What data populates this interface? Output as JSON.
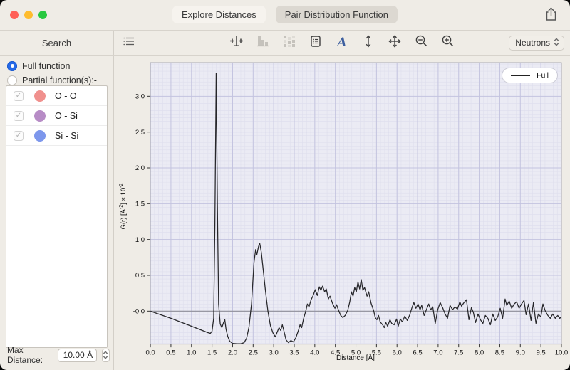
{
  "titlebar": {
    "tabs": [
      {
        "label": "Explore Distances",
        "selected": false
      },
      {
        "label": "Pair Distribution Function",
        "selected": true
      }
    ]
  },
  "sidebar": {
    "header": "Search",
    "radio_full_label": "Full function",
    "radio_partial_label": "Partial function(s):-",
    "pairs": [
      {
        "label": "O - O",
        "checked": true,
        "color": "#f0908d"
      },
      {
        "label": "O - Si",
        "checked": true,
        "color": "#b78cc6"
      },
      {
        "label": "Si - Si",
        "checked": true,
        "color": "#7d97ec"
      }
    ],
    "checkmark": "✓",
    "max_distance": {
      "label": "Max Distance:",
      "value": "10.00 Å"
    }
  },
  "toolbar": {
    "source_selector": "Neutrons",
    "icons": [
      "view-list",
      "adjust-range",
      "histogram",
      "scatter-grid",
      "data-table",
      "font",
      "scale-vertical",
      "pan",
      "zoom-out",
      "zoom-in"
    ],
    "disabled_icons": [
      "histogram",
      "scatter-grid"
    ]
  },
  "colors": {
    "accent_blue": "#2569e8",
    "traffic_close": "#ff5f57",
    "traffic_min": "#febc2e",
    "traffic_max": "#28c840",
    "plot_bg": "#ebebf4",
    "grid_minor": "#dedeed",
    "grid_major": "#c3c3df",
    "zero_line": "#90909a",
    "plot_border": "#a8a8b4",
    "curve": "#26262a"
  },
  "chart_data": {
    "type": "line",
    "xlabel": "Distance [Å]",
    "ylabel": {
      "pre": "G(r) [Å",
      "sup1": "-2",
      "mid": "] × 10",
      "sup2": "-2"
    },
    "xlim": [
      0,
      10
    ],
    "ylim": [
      -0.46,
      3.47
    ],
    "grid": {
      "x_minor": 0.1,
      "y_minor": 0.05,
      "x_major": 0.5,
      "y_major": 0.5
    },
    "legend_position": "top-right",
    "xtick_labels": [
      "0.0",
      "0.5",
      "1.0",
      "1.5",
      "2.0",
      "2.5",
      "3.0",
      "3.5",
      "4.0",
      "4.5",
      "5.0",
      "5.5",
      "6.0",
      "6.5",
      "7.0",
      "7.5",
      "8.0",
      "8.5",
      "9.0",
      "9.5",
      "10.0"
    ],
    "ytick_labels": [
      "3.0",
      "2.5",
      "2.0",
      "1.5",
      "1.0",
      "0.5",
      "-0.0"
    ],
    "ytick_values": [
      3.0,
      2.5,
      2.0,
      1.5,
      1.0,
      0.5,
      0.0
    ],
    "series": [
      {
        "name": "Full",
        "points": [
          [
            0.0,
            0.0
          ],
          [
            0.5,
            -0.1
          ],
          [
            1.0,
            -0.21
          ],
          [
            1.4,
            -0.3
          ],
          [
            1.46,
            -0.31
          ],
          [
            1.5,
            -0.28
          ],
          [
            1.54,
            -0.1
          ],
          [
            1.57,
            1.2
          ],
          [
            1.6,
            3.32
          ],
          [
            1.63,
            1.5
          ],
          [
            1.66,
            0.1
          ],
          [
            1.7,
            -0.18
          ],
          [
            1.74,
            -0.23
          ],
          [
            1.78,
            -0.16
          ],
          [
            1.81,
            -0.12
          ],
          [
            1.84,
            -0.25
          ],
          [
            1.88,
            -0.35
          ],
          [
            1.93,
            -0.42
          ],
          [
            2.0,
            -0.45
          ],
          [
            2.1,
            -0.455
          ],
          [
            2.2,
            -0.455
          ],
          [
            2.28,
            -0.44
          ],
          [
            2.34,
            -0.38
          ],
          [
            2.4,
            -0.22
          ],
          [
            2.46,
            0.1
          ],
          [
            2.52,
            0.68
          ],
          [
            2.56,
            0.86
          ],
          [
            2.59,
            0.79
          ],
          [
            2.63,
            0.9
          ],
          [
            2.66,
            0.95
          ],
          [
            2.7,
            0.82
          ],
          [
            2.75,
            0.55
          ],
          [
            2.8,
            0.28
          ],
          [
            2.86,
            0.0
          ],
          [
            2.92,
            -0.2
          ],
          [
            2.98,
            -0.3
          ],
          [
            3.04,
            -0.36
          ],
          [
            3.08,
            -0.3
          ],
          [
            3.13,
            -0.23
          ],
          [
            3.17,
            -0.27
          ],
          [
            3.21,
            -0.19
          ],
          [
            3.25,
            -0.28
          ],
          [
            3.3,
            -0.4
          ],
          [
            3.36,
            -0.44
          ],
          [
            3.42,
            -0.41
          ],
          [
            3.48,
            -0.43
          ],
          [
            3.54,
            -0.37
          ],
          [
            3.6,
            -0.27
          ],
          [
            3.64,
            -0.19
          ],
          [
            3.68,
            -0.23
          ],
          [
            3.73,
            -0.1
          ],
          [
            3.78,
            0.0
          ],
          [
            3.82,
            0.1
          ],
          [
            3.86,
            0.06
          ],
          [
            3.91,
            0.16
          ],
          [
            3.96,
            0.22
          ],
          [
            4.01,
            0.3
          ],
          [
            4.06,
            0.22
          ],
          [
            4.11,
            0.34
          ],
          [
            4.15,
            0.29
          ],
          [
            4.19,
            0.35
          ],
          [
            4.24,
            0.27
          ],
          [
            4.28,
            0.31
          ],
          [
            4.33,
            0.17
          ],
          [
            4.37,
            0.21
          ],
          [
            4.43,
            0.11
          ],
          [
            4.49,
            0.04
          ],
          [
            4.53,
            0.09
          ],
          [
            4.58,
            0.01
          ],
          [
            4.63,
            -0.06
          ],
          [
            4.68,
            -0.09
          ],
          [
            4.74,
            -0.06
          ],
          [
            4.8,
            0.01
          ],
          [
            4.85,
            0.13
          ],
          [
            4.89,
            0.27
          ],
          [
            4.93,
            0.21
          ],
          [
            4.97,
            0.33
          ],
          [
            5.01,
            0.27
          ],
          [
            5.05,
            0.41
          ],
          [
            5.09,
            0.31
          ],
          [
            5.13,
            0.44
          ],
          [
            5.17,
            0.29
          ],
          [
            5.21,
            0.33
          ],
          [
            5.27,
            0.21
          ],
          [
            5.31,
            0.27
          ],
          [
            5.37,
            0.11
          ],
          [
            5.43,
            0.01
          ],
          [
            5.47,
            -0.09
          ],
          [
            5.51,
            -0.12
          ],
          [
            5.55,
            -0.06
          ],
          [
            5.59,
            -0.15
          ],
          [
            5.65,
            -0.19
          ],
          [
            5.69,
            -0.23
          ],
          [
            5.73,
            -0.16
          ],
          [
            5.77,
            -0.21
          ],
          [
            5.83,
            -0.12
          ],
          [
            5.87,
            -0.17
          ],
          [
            5.93,
            -0.19
          ],
          [
            5.99,
            -0.11
          ],
          [
            6.03,
            -0.21
          ],
          [
            6.08,
            -0.11
          ],
          [
            6.13,
            -0.15
          ],
          [
            6.19,
            -0.07
          ],
          [
            6.25,
            -0.13
          ],
          [
            6.31,
            -0.05
          ],
          [
            6.37,
            0.06
          ],
          [
            6.41,
            0.12
          ],
          [
            6.46,
            0.04
          ],
          [
            6.51,
            0.1
          ],
          [
            6.56,
            0.02
          ],
          [
            6.6,
            0.08
          ],
          [
            6.66,
            -0.06
          ],
          [
            6.72,
            0.03
          ],
          [
            6.77,
            0.1
          ],
          [
            6.82,
            0.02
          ],
          [
            6.87,
            0.06
          ],
          [
            6.93,
            -0.17
          ],
          [
            6.99,
            0.02
          ],
          [
            7.05,
            0.12
          ],
          [
            7.11,
            0.05
          ],
          [
            7.17,
            -0.04
          ],
          [
            7.23,
            -0.1
          ],
          [
            7.29,
            0.08
          ],
          [
            7.35,
            0.02
          ],
          [
            7.41,
            0.06
          ],
          [
            7.47,
            0.03
          ],
          [
            7.53,
            0.13
          ],
          [
            7.57,
            0.07
          ],
          [
            7.63,
            0.12
          ],
          [
            7.69,
            0.16
          ],
          [
            7.75,
            -0.12
          ],
          [
            7.81,
            0.05
          ],
          [
            7.86,
            -0.02
          ],
          [
            7.91,
            -0.16
          ],
          [
            7.97,
            -0.04
          ],
          [
            8.03,
            -0.12
          ],
          [
            8.09,
            -0.17
          ],
          [
            8.15,
            -0.06
          ],
          [
            8.21,
            -0.1
          ],
          [
            8.27,
            -0.19
          ],
          [
            8.33,
            -0.04
          ],
          [
            8.39,
            -0.13
          ],
          [
            8.45,
            -0.08
          ],
          [
            8.51,
            0.04
          ],
          [
            8.57,
            -0.1
          ],
          [
            8.63,
            0.17
          ],
          [
            8.67,
            0.08
          ],
          [
            8.73,
            0.14
          ],
          [
            8.79,
            0.04
          ],
          [
            8.85,
            0.1
          ],
          [
            8.91,
            0.13
          ],
          [
            8.97,
            0.04
          ],
          [
            9.03,
            0.1
          ],
          [
            9.09,
            0.15
          ],
          [
            9.14,
            -0.05
          ],
          [
            9.2,
            0.1
          ],
          [
            9.26,
            -0.13
          ],
          [
            9.32,
            0.12
          ],
          [
            9.38,
            -0.17
          ],
          [
            9.44,
            -0.04
          ],
          [
            9.5,
            -0.08
          ],
          [
            9.55,
            0.1
          ],
          [
            9.61,
            0.0
          ],
          [
            9.67,
            -0.06
          ],
          [
            9.73,
            -0.1
          ],
          [
            9.79,
            -0.04
          ],
          [
            9.85,
            -0.1
          ],
          [
            9.91,
            -0.06
          ],
          [
            9.96,
            -0.1
          ],
          [
            10.0,
            -0.08
          ]
        ]
      }
    ]
  }
}
